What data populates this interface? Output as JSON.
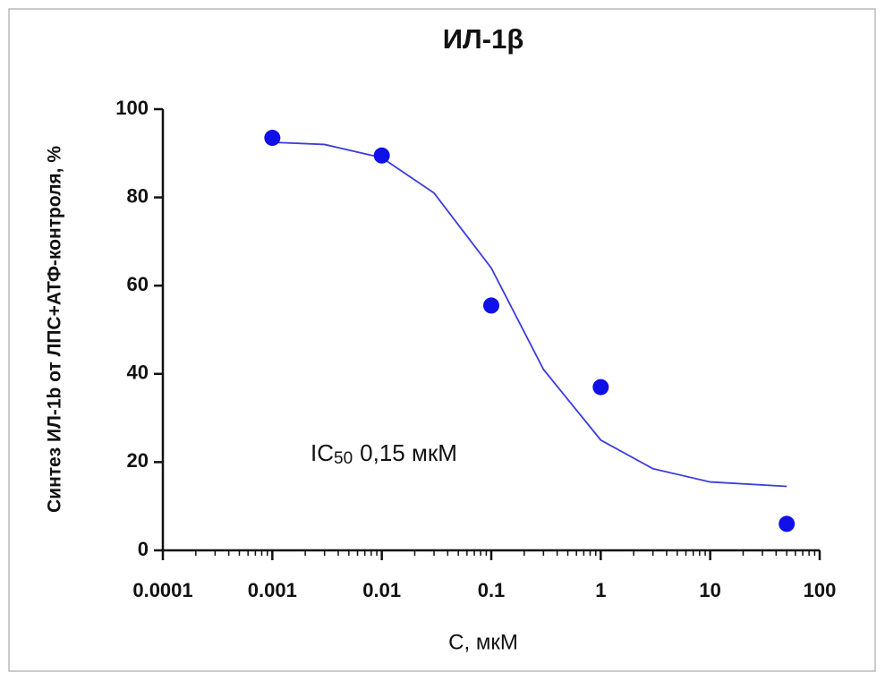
{
  "chart_data": {
    "type": "scatter",
    "title": "ИЛ-1β",
    "xlabel": "С, мкМ",
    "ylabel": "Синтез ИЛ-1b от ЛПС+АТФ-контроля, %",
    "annotation": {
      "main": "IC",
      "sub": "50",
      "rest": "0,15 мкМ"
    },
    "xscale": "log",
    "xlim": [
      0.0001,
      100
    ],
    "ylim": [
      0,
      100
    ],
    "xticks": [
      0.0001,
      0.001,
      0.01,
      0.1,
      1,
      10,
      100
    ],
    "yticks": [
      0,
      20,
      40,
      60,
      80,
      100
    ],
    "series": [
      {
        "kind": "points",
        "color": "#1010e8",
        "x": [
          0.001,
          0.01,
          0.1,
          1,
          50
        ],
        "values": [
          93.5,
          89.5,
          55.5,
          37,
          6
        ]
      },
      {
        "kind": "fit",
        "color": "#3c3cdc",
        "x": [
          0.001,
          0.003,
          0.01,
          0.03,
          0.1,
          0.3,
          1,
          3,
          10,
          50
        ],
        "values": [
          92.5,
          92,
          89,
          81,
          64,
          41,
          25,
          18.5,
          15.5,
          14.5
        ]
      }
    ]
  }
}
